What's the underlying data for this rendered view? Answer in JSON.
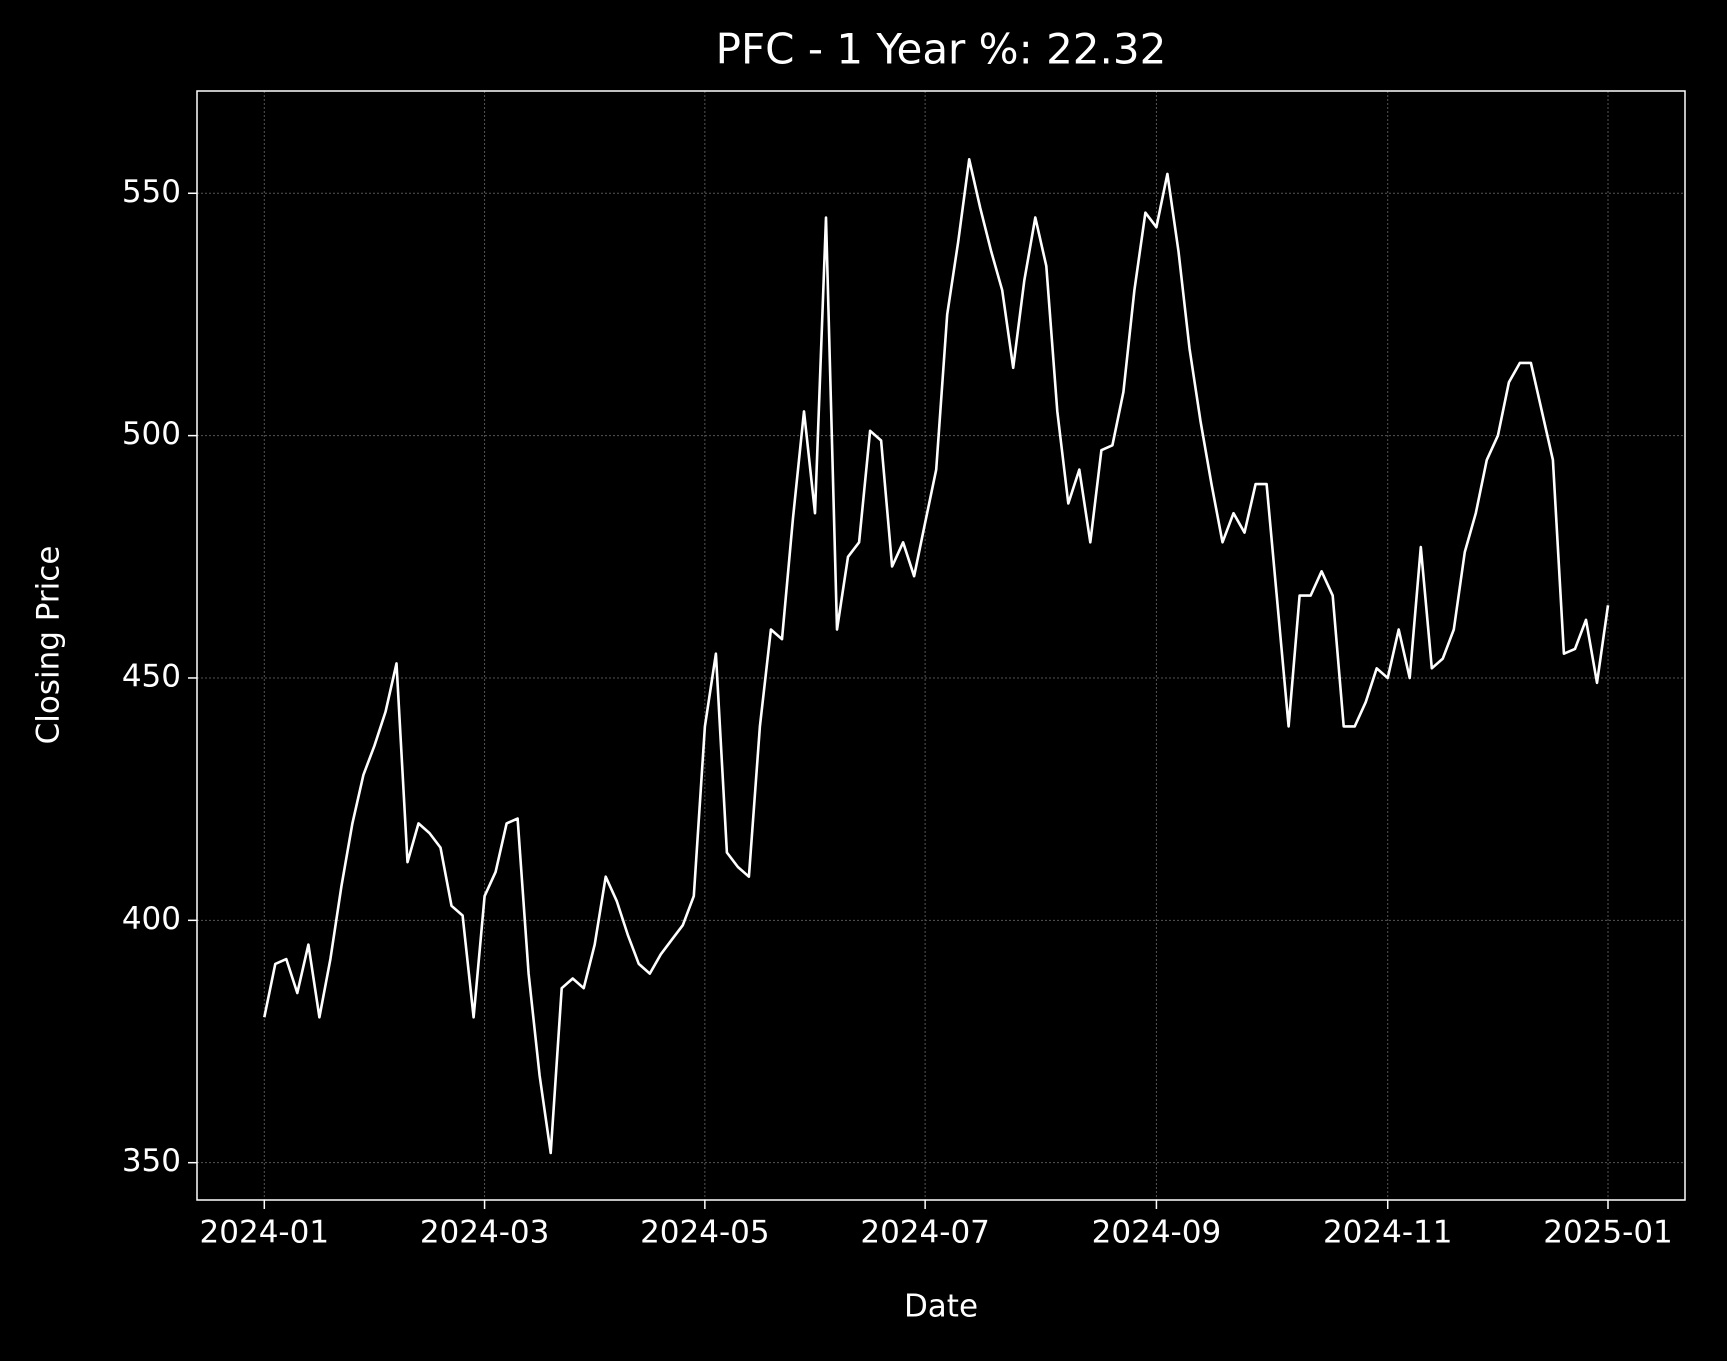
{
  "chart_data": {
    "type": "line",
    "title": "PFC - 1 Year %: 22.32",
    "x_label": "Date",
    "y_label": "Closing Price",
    "categories": [
      "2024-01",
      null,
      null,
      null,
      null,
      null,
      null,
      null,
      null,
      null,
      null,
      null,
      null,
      null,
      null,
      null,
      null,
      null,
      null,
      null,
      "2024-03",
      null,
      null,
      null,
      null,
      null,
      null,
      null,
      null,
      null,
      null,
      null,
      null,
      null,
      null,
      null,
      null,
      null,
      null,
      null,
      "2024-05",
      null,
      null,
      null,
      null,
      null,
      null,
      null,
      null,
      null,
      null,
      null,
      null,
      null,
      null,
      null,
      null,
      null,
      null,
      null,
      "2024-07",
      null,
      null,
      null,
      null,
      null,
      null,
      null,
      null,
      null,
      null,
      null,
      null,
      null,
      null,
      null,
      null,
      null,
      null,
      null,
      null,
      "2024-09",
      null,
      null,
      null,
      null,
      null,
      null,
      null,
      null,
      null,
      null,
      null,
      null,
      null,
      null,
      null,
      null,
      null,
      null,
      null,
      null,
      "2024-11",
      null,
      null,
      null,
      null,
      null,
      null,
      null,
      null,
      null,
      null,
      null,
      null,
      null,
      null,
      null,
      null,
      null,
      null,
      null,
      "2025-01"
    ],
    "series": [
      {
        "name": "Closing Price",
        "color": "#ffffff",
        "values": [
          380,
          391,
          392,
          385,
          395,
          380,
          392,
          407,
          420,
          430,
          436,
          443,
          453,
          412,
          420,
          418,
          415,
          403,
          401,
          380,
          405,
          410,
          420,
          421,
          389,
          368,
          352,
          386,
          388,
          386,
          395,
          409,
          404,
          397,
          391,
          389,
          393,
          396,
          399,
          405,
          440,
          455,
          414,
          411,
          409,
          440,
          460,
          458,
          483,
          505,
          484,
          545,
          460,
          475,
          478,
          501,
          499,
          473,
          478,
          471,
          482,
          493,
          525,
          540,
          557,
          547,
          538,
          530,
          514,
          532,
          545,
          535,
          505,
          486,
          493,
          478,
          497,
          498,
          509,
          530,
          546,
          543,
          554,
          538,
          518,
          503,
          490,
          478,
          484,
          480,
          490,
          490,
          465,
          440,
          467,
          467,
          472,
          467,
          440,
          440,
          445,
          452,
          450,
          460,
          450,
          477,
          452,
          454,
          460,
          476,
          484,
          495,
          500,
          511,
          515,
          515,
          505,
          495,
          455,
          456,
          462,
          449,
          465
        ]
      }
    ],
    "ylim": [
      342.3,
      571.1
    ],
    "yticks": [
      350,
      400,
      450,
      500,
      550
    ],
    "grid": true
  }
}
